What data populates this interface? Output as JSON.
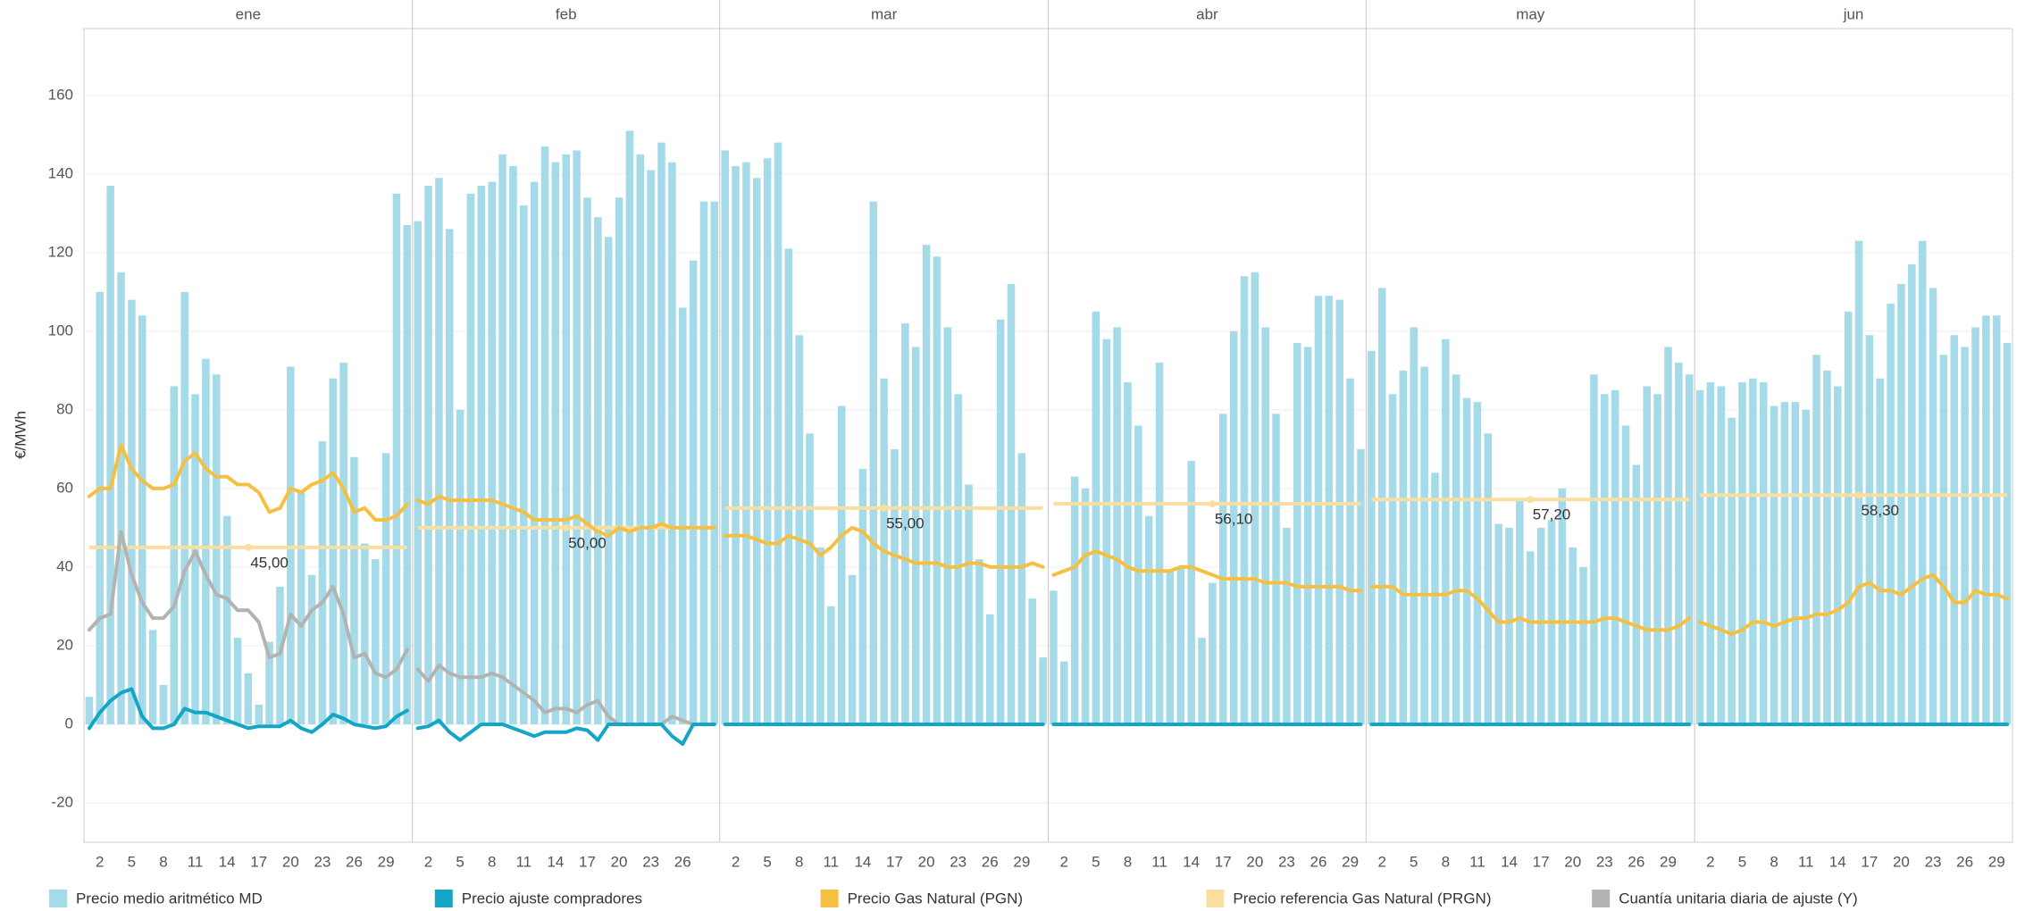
{
  "chart_data": {
    "type": "bar",
    "y_label": "€/MWh",
    "ylim": [
      -30,
      177
    ],
    "yticks": [
      -20,
      0,
      20,
      40,
      60,
      80,
      100,
      120,
      140,
      160
    ],
    "grid": true,
    "panels": [
      {
        "title": "ene",
        "categories": [
          null,
          2,
          null,
          null,
          5,
          null,
          null,
          8,
          null,
          null,
          11,
          null,
          null,
          14,
          null,
          null,
          17,
          null,
          null,
          20,
          null,
          null,
          23,
          null,
          null,
          26,
          null,
          null,
          29,
          null,
          null
        ]
      },
      {
        "title": "feb",
        "categories": [
          null,
          2,
          null,
          null,
          5,
          null,
          null,
          8,
          null,
          null,
          11,
          null,
          null,
          14,
          null,
          null,
          17,
          null,
          null,
          20,
          null,
          null,
          23,
          null,
          null,
          26,
          null,
          null,
          null
        ]
      },
      {
        "title": "mar",
        "categories": [
          null,
          2,
          null,
          null,
          5,
          null,
          null,
          8,
          null,
          null,
          11,
          null,
          null,
          14,
          null,
          null,
          17,
          null,
          null,
          20,
          null,
          null,
          23,
          null,
          null,
          26,
          null,
          null,
          29,
          null,
          null
        ]
      },
      {
        "title": "abr",
        "categories": [
          null,
          2,
          null,
          null,
          5,
          null,
          null,
          8,
          null,
          null,
          11,
          null,
          null,
          14,
          null,
          null,
          17,
          null,
          null,
          20,
          null,
          null,
          23,
          null,
          null,
          26,
          null,
          null,
          29,
          null
        ]
      },
      {
        "title": "may",
        "categories": [
          null,
          2,
          null,
          null,
          5,
          null,
          null,
          8,
          null,
          null,
          11,
          null,
          null,
          14,
          null,
          null,
          17,
          null,
          null,
          20,
          null,
          null,
          23,
          null,
          null,
          26,
          null,
          null,
          29,
          null,
          null
        ]
      },
      {
        "title": "jun",
        "categories": [
          null,
          2,
          null,
          null,
          5,
          null,
          null,
          8,
          null,
          null,
          11,
          null,
          null,
          14,
          null,
          null,
          17,
          null,
          null,
          20,
          null,
          null,
          23,
          null,
          null,
          26,
          null,
          null,
          29,
          null
        ]
      }
    ],
    "series": [
      {
        "name": "Precio medio aritmético MD",
        "color": "#a5dbe8",
        "kind": "bar",
        "values": [
          [
            7,
            110,
            137,
            115,
            108,
            104,
            24,
            10,
            86,
            110,
            84,
            93,
            89,
            53,
            22,
            13,
            5,
            21,
            35,
            91,
            59,
            38,
            72,
            88,
            92,
            68,
            46,
            42,
            69,
            135,
            127
          ],
          [
            128,
            137,
            139,
            126,
            80,
            135,
            137,
            138,
            145,
            142,
            132,
            138,
            147,
            143,
            145,
            146,
            134,
            129,
            124,
            134,
            151,
            145,
            141,
            148,
            143,
            106,
            118,
            133,
            133
          ],
          [
            146,
            142,
            143,
            139,
            144,
            148,
            121,
            99,
            74,
            45,
            30,
            81,
            38,
            65,
            133,
            88,
            70,
            102,
            96,
            122,
            119,
            101,
            84,
            61,
            42,
            28,
            103,
            112,
            69,
            32,
            17
          ],
          [
            34,
            16,
            63,
            60,
            105,
            98,
            101,
            87,
            76,
            53,
            92,
            39,
            40,
            67,
            22,
            36,
            79,
            100,
            114,
            115,
            101,
            79,
            50,
            97,
            96,
            109,
            109,
            108,
            88,
            70
          ],
          [
            95,
            111,
            84,
            90,
            101,
            91,
            64,
            98,
            89,
            83,
            82,
            74,
            51,
            50,
            57,
            44,
            50,
            52,
            60,
            45,
            40,
            89,
            84,
            85,
            76,
            66,
            86,
            84,
            96,
            92,
            89
          ],
          [
            85,
            87,
            86,
            78,
            87,
            88,
            87,
            81,
            82,
            82,
            80,
            94,
            90,
            86,
            105,
            123,
            99,
            88,
            107,
            112,
            117,
            123,
            111,
            94,
            99,
            96,
            101,
            104,
            104,
            97
          ]
        ]
      },
      {
        "name": "Precio ajuste compradores",
        "color": "#13a6c6",
        "kind": "line",
        "values": [
          [
            -1,
            3,
            6,
            8,
            9,
            2,
            -1,
            -1,
            0,
            4,
            3,
            3,
            2,
            1,
            0,
            -1,
            -0.5,
            -0.5,
            -0.5,
            1,
            -1,
            -2,
            0,
            2.5,
            1.5,
            0,
            -0.5,
            -1,
            -0.5,
            2,
            3.5
          ],
          [
            -1,
            -0.5,
            1,
            -2,
            -4,
            -2,
            0,
            0,
            0,
            -1,
            -2,
            -3,
            -2,
            -2,
            -2,
            -1,
            -1.5,
            -4,
            0,
            0,
            0,
            0,
            0,
            0,
            -3,
            -5,
            0,
            0,
            0
          ],
          [
            0,
            0,
            0,
            0,
            0,
            0,
            0,
            0,
            0,
            0,
            0,
            0,
            0,
            0,
            0,
            0,
            0,
            0,
            0,
            0,
            0,
            0,
            0,
            0,
            0,
            0,
            0,
            0,
            0,
            0,
            0
          ],
          [
            0,
            0,
            0,
            0,
            0,
            0,
            0,
            0,
            0,
            0,
            0,
            0,
            0,
            0,
            0,
            0,
            0,
            0,
            0,
            0,
            0,
            0,
            0,
            0,
            0,
            0,
            0,
            0,
            0,
            0
          ],
          [
            0,
            0,
            0,
            0,
            0,
            0,
            0,
            0,
            0,
            0,
            0,
            0,
            0,
            0,
            0,
            0,
            0,
            0,
            0,
            0,
            0,
            0,
            0,
            0,
            0,
            0,
            0,
            0,
            0,
            0,
            0
          ],
          [
            0,
            0,
            0,
            0,
            0,
            0,
            0,
            0,
            0,
            0,
            0,
            0,
            0,
            0,
            0,
            0,
            0,
            0,
            0,
            0,
            0,
            0,
            0,
            0,
            0,
            0,
            0,
            0,
            0,
            0
          ]
        ]
      },
      {
        "name": "Precio Gas Natural (PGN)",
        "color": "#f5c042",
        "kind": "line",
        "values": [
          [
            58,
            60,
            60,
            71,
            65,
            62,
            60,
            60,
            61,
            67,
            69,
            65,
            63,
            63,
            61,
            61,
            59,
            54,
            55,
            60,
            59,
            61,
            62,
            64,
            60,
            54,
            55,
            52,
            52,
            53,
            56
          ],
          [
            57,
            56,
            58,
            57,
            57,
            57,
            57,
            57,
            56,
            55,
            54,
            52,
            52,
            52,
            52,
            53,
            51,
            49,
            48,
            50,
            49,
            50,
            50,
            51,
            50,
            50,
            50,
            50,
            50
          ],
          [
            48,
            48,
            48,
            47,
            46,
            46,
            48,
            47,
            46,
            43,
            45,
            48,
            50,
            49,
            46,
            44,
            43,
            42,
            41,
            41,
            41,
            40,
            40,
            41,
            41,
            40,
            40,
            40,
            40,
            41,
            40
          ],
          [
            38,
            39,
            40,
            43,
            44,
            43,
            42,
            40,
            39,
            39,
            39,
            39,
            40,
            40,
            39,
            38,
            37,
            37,
            37,
            37,
            36,
            36,
            36,
            35,
            35,
            35,
            35,
            35,
            34,
            34
          ],
          [
            35,
            35,
            35,
            33,
            33,
            33,
            33,
            33,
            34,
            34,
            32,
            29,
            26,
            26,
            27,
            26,
            26,
            26,
            26,
            26,
            26,
            26,
            27,
            27,
            26,
            25,
            24,
            24,
            24,
            25,
            27
          ],
          [
            26,
            25,
            24,
            23,
            24,
            26,
            26,
            25,
            26,
            27,
            27,
            28,
            28,
            29,
            31,
            35,
            36,
            34,
            34,
            33,
            35,
            37,
            38,
            35,
            31,
            31,
            34,
            33,
            33,
            32
          ]
        ]
      },
      {
        "name": "Precio referencia Gas Natural (PRGN)",
        "color": "#f9dea0",
        "kind": "level",
        "values": [
          45,
          50,
          55,
          56.1,
          57.2,
          58.3
        ],
        "value_labels": [
          "45,00",
          "50,00",
          "55,00",
          "56,10",
          "57,20",
          "58,30"
        ]
      },
      {
        "name": "Cuantía unitaria diaria de ajuste (Y)",
        "color": "#b3b3b3",
        "kind": "line",
        "values": [
          [
            24,
            27,
            28,
            49,
            38,
            31,
            27,
            27,
            30,
            39,
            44,
            38,
            33,
            32,
            29,
            29,
            26,
            17,
            18,
            28,
            25,
            29,
            31,
            35,
            28,
            17,
            18,
            13,
            12,
            14,
            19
          ],
          [
            14,
            11,
            15,
            13,
            12,
            12,
            12,
            13,
            12,
            10,
            8,
            6,
            3,
            4,
            4,
            3,
            5,
            6,
            2,
            0,
            0,
            0,
            0,
            0,
            2,
            1,
            0,
            0,
            0
          ]
        ]
      }
    ]
  }
}
